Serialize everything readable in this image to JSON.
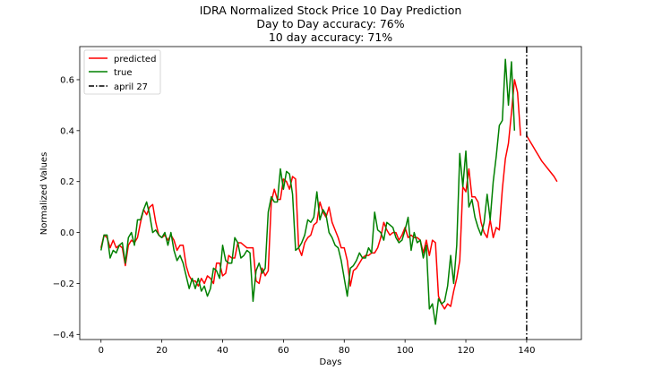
{
  "chart_data": {
    "type": "line",
    "title_lines": [
      "IDRA Normalized Stock Price 10 Day Prediction",
      "Day to Day accuracy: 76%",
      "10 day accuracy: 71%"
    ],
    "xlabel": "Days",
    "ylabel": "Normalized Values",
    "xlim": [
      -7,
      158
    ],
    "ylim": [
      -0.42,
      0.73
    ],
    "xticks": [
      0,
      20,
      40,
      60,
      80,
      100,
      120,
      140
    ],
    "yticks": [
      -0.4,
      -0.2,
      0.0,
      0.2,
      0.4,
      0.6
    ],
    "ytick_labels": [
      "−0.4",
      "−0.2",
      "0.0",
      "0.2",
      "0.4",
      "0.6"
    ],
    "grid": false,
    "legend_position": "top-left",
    "series": [
      {
        "name": "predicted",
        "color": "#ff0000",
        "x_start": 0,
        "values": [
          -0.06,
          -0.01,
          -0.02,
          -0.06,
          -0.03,
          -0.06,
          -0.05,
          -0.06,
          -0.13,
          -0.05,
          -0.03,
          -0.04,
          -0.02,
          0.04,
          0.09,
          0.07,
          0.1,
          0.11,
          0.04,
          -0.01,
          -0.02,
          -0.01,
          -0.03,
          -0.01,
          -0.03,
          -0.07,
          -0.05,
          -0.05,
          -0.13,
          -0.17,
          -0.19,
          -0.19,
          -0.21,
          -0.18,
          -0.2,
          -0.17,
          -0.18,
          -0.2,
          -0.12,
          -0.12,
          -0.17,
          -0.16,
          -0.09,
          -0.1,
          -0.1,
          -0.04,
          -0.04,
          -0.05,
          -0.06,
          -0.06,
          -0.06,
          -0.19,
          -0.2,
          -0.14,
          -0.17,
          -0.15,
          0.12,
          0.17,
          0.13,
          0.13,
          0.21,
          0.2,
          0.17,
          0.22,
          0.21,
          -0.06,
          -0.09,
          -0.04,
          -0.02,
          -0.01,
          0.03,
          0.04,
          0.12,
          0.08,
          0.06,
          0.1,
          0.04,
          0.01,
          -0.02,
          -0.06,
          -0.06,
          -0.11,
          -0.21,
          -0.15,
          -0.14,
          -0.12,
          -0.1,
          -0.09,
          -0.09,
          -0.08,
          -0.08,
          -0.06,
          -0.02,
          0.04,
          0.01,
          -0.01,
          0.0,
          0.0,
          -0.03,
          -0.01,
          0.02,
          -0.02,
          -0.01,
          -0.02,
          -0.02,
          -0.03,
          -0.08,
          -0.03,
          -0.09,
          -0.03,
          -0.04,
          -0.25,
          -0.28,
          -0.3,
          -0.28,
          -0.29,
          -0.23,
          -0.18,
          -0.11,
          0.18,
          0.16,
          0.25,
          0.14,
          0.14,
          0.12,
          0.04,
          0.0,
          -0.02,
          0.05,
          -0.02,
          0.02,
          0.01,
          0.17,
          0.29,
          0.35,
          0.47,
          0.6,
          0.55,
          0.38
        ],
        "forecast_x_start": 140,
        "forecast_values": [
          0.38,
          0.36,
          0.34,
          0.32,
          0.3,
          0.28,
          0.265,
          0.25,
          0.235,
          0.22,
          0.2
        ]
      },
      {
        "name": "true",
        "color": "#008000",
        "x_start": 0,
        "values": [
          -0.07,
          -0.01,
          -0.01,
          -0.1,
          -0.07,
          -0.08,
          -0.05,
          -0.04,
          -0.12,
          -0.02,
          0.0,
          -0.05,
          0.05,
          0.05,
          0.09,
          0.12,
          0.07,
          0.0,
          0.01,
          -0.01,
          -0.02,
          0.0,
          -0.05,
          0.0,
          -0.07,
          -0.11,
          -0.09,
          -0.12,
          -0.17,
          -0.22,
          -0.18,
          -0.22,
          -0.18,
          -0.23,
          -0.21,
          -0.25,
          -0.22,
          -0.14,
          -0.15,
          -0.18,
          -0.05,
          -0.11,
          -0.12,
          -0.12,
          -0.02,
          -0.04,
          -0.1,
          -0.09,
          -0.07,
          -0.08,
          -0.27,
          -0.15,
          -0.12,
          -0.16,
          -0.14,
          0.08,
          0.14,
          0.12,
          0.12,
          0.25,
          0.17,
          0.24,
          0.23,
          0.15,
          -0.07,
          -0.06,
          -0.04,
          -0.01,
          0.05,
          0.04,
          0.06,
          0.16,
          0.05,
          0.09,
          0.07,
          0.0,
          -0.02,
          -0.05,
          -0.06,
          -0.11,
          -0.18,
          -0.25,
          -0.14,
          -0.13,
          -0.11,
          -0.08,
          -0.1,
          -0.1,
          -0.06,
          -0.08,
          0.08,
          0.01,
          0.0,
          -0.03,
          0.04,
          0.03,
          0.02,
          -0.02,
          -0.04,
          -0.03,
          0.01,
          0.06,
          -0.07,
          0.0,
          -0.04,
          -0.03,
          -0.1,
          -0.05,
          -0.3,
          -0.28,
          -0.36,
          -0.26,
          -0.28,
          -0.27,
          -0.21,
          -0.09,
          -0.2,
          -0.05,
          0.31,
          0.18,
          0.32,
          0.1,
          0.13,
          0.06,
          0.02,
          -0.01,
          0.04,
          0.15,
          0.05,
          0.2,
          0.3,
          0.42,
          0.44,
          0.68,
          0.5,
          0.67,
          0.4
        ]
      }
    ],
    "vline": {
      "name": "april 27",
      "x": 140,
      "color": "#000000",
      "style": "dashdot"
    }
  }
}
